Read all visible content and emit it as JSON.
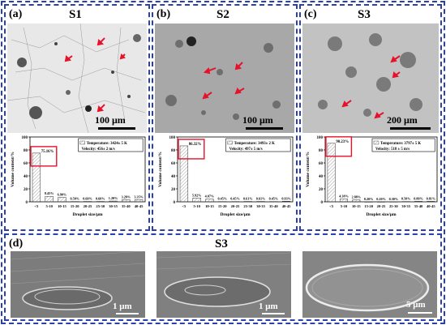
{
  "panels": [
    {
      "label": "(a)",
      "title": "S1",
      "scale": "100 μm"
    },
    {
      "label": "(b)",
      "title": "S2",
      "scale": "100 μm"
    },
    {
      "label": "(c)",
      "title": "S3",
      "scale": "200 μm"
    },
    {
      "label": "(d)",
      "title": "S3",
      "scales": [
        "1 μm",
        "1 μm",
        "5 μm"
      ]
    }
  ],
  "colors": {
    "frame": "#2a3fb0",
    "arrow": "#e8102a",
    "highlight": "#e8102a"
  },
  "chart_data": [
    {
      "type": "bar",
      "categories": [
        "<5",
        "5-10",
        "10-15",
        "15-20",
        "20-25",
        "25-30",
        "30-35",
        "35-40",
        "40-45"
      ],
      "values": [
        75.16,
        8.45,
        6.9,
        0.5,
        0.6,
        0.6,
        1.2,
        3.28,
        3.35
      ],
      "value_labels": [
        "75.16%",
        "8.45%",
        "6.90%",
        "0.50%",
        "0.60%",
        "0.60%",
        "1.20%",
        "3.28%",
        "3.35%"
      ],
      "xlabel": "Droplet size/μm",
      "ylabel": "Volume content/%",
      "ylim": [
        0,
        100
      ],
      "yticks": [
        0,
        20,
        40,
        60,
        80,
        100
      ],
      "legend": [
        "Temperature: 3424± 5 K",
        "Velocity: 456± 2 m/s"
      ],
      "highlight_index": 0
    },
    {
      "type": "bar",
      "categories": [
        "<5",
        "5-10",
        "10-15",
        "15-20",
        "20-25",
        "25-30",
        "30-35",
        "35-40",
        "40-45"
      ],
      "values": [
        86.32,
        5.92,
        4.07,
        0.45,
        0.45,
        0.61,
        0.61,
        0.45,
        0.93
      ],
      "value_labels": [
        "86.32%",
        "5.92%",
        "4.07%",
        "0.45%",
        "0.45%",
        "0.61%",
        "0.61%",
        "0.45%",
        "0.93%"
      ],
      "xlabel": "Droplet size/μm",
      "ylabel": "Volume content/%",
      "ylim": [
        0,
        100
      ],
      "yticks": [
        0,
        20,
        40,
        60,
        80,
        100
      ],
      "legend": [
        "Temperature: 3493± 2 K",
        "Velocity: 497± 5 m/s"
      ],
      "highlight_index": 0
    },
    {
      "type": "bar",
      "categories": [
        "<5",
        "5-10",
        "10-15",
        "15-20",
        "20-25",
        "25-30",
        "30-35",
        "35-40",
        "40-45"
      ],
      "values": [
        90.23,
        4.38,
        2.88,
        0.2,
        0.2,
        0.3,
        0.5,
        0.8,
        0.81
      ],
      "value_labels": [
        "90.23%",
        "4.38%",
        "2.88%",
        "0.20%",
        "0.20%",
        "0.30%",
        "0.50%",
        "0.80%",
        "0.81%"
      ],
      "xlabel": "Droplet size/μm",
      "ylabel": "Volume content/%",
      "ylim": [
        0,
        100
      ],
      "yticks": [
        0,
        20,
        40,
        60,
        80,
        100
      ],
      "legend": [
        "Temperature: 3797± 5 K",
        "Velocity: 518 ± 5 m/s"
      ],
      "highlight_index": 0
    }
  ]
}
